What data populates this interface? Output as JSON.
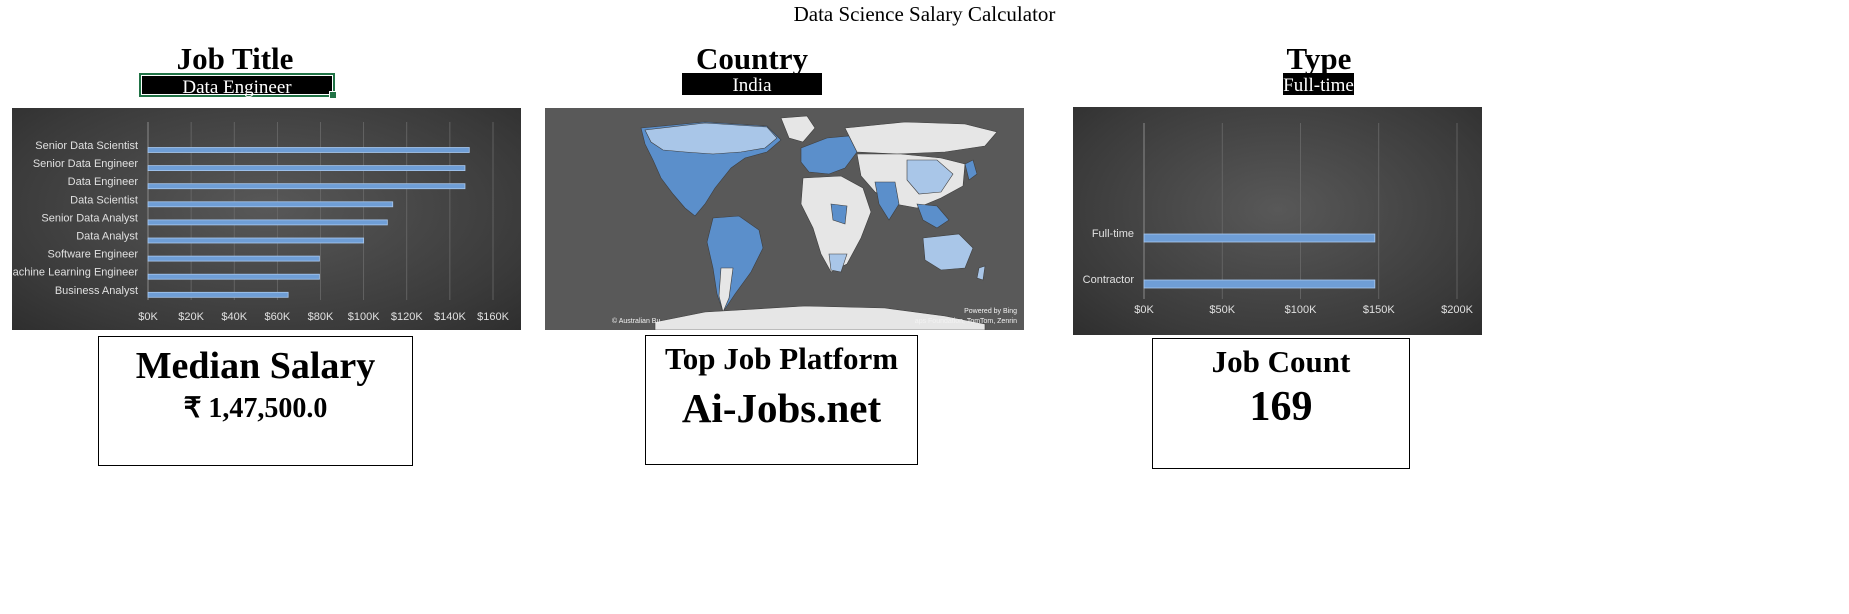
{
  "page": {
    "title": "Data Science Salary Calculator"
  },
  "selectors": {
    "job_title": {
      "label": "Job Title",
      "value": "Data Engineer"
    },
    "country": {
      "label": "Country",
      "value": "India"
    },
    "type": {
      "label": "Type",
      "value": "Full-time"
    }
  },
  "colors": {
    "bar": "#6f9ed6",
    "bar_highlight": "#a9c8ee",
    "panel_dark": "#3a3a3a",
    "map_bg": "#595959",
    "map_land": "#e6e6e6",
    "map_data_dark": "#5b8fcb",
    "map_data_light": "#a9c6e8",
    "selection_green": "#217346"
  },
  "chart_data": [
    {
      "type": "bar",
      "orientation": "horizontal",
      "categories": [
        "Senior Data Scientist",
        "Senior Data Engineer",
        "Data Engineer",
        "Data Scientist",
        "Senior Data Analyst",
        "Data Analyst",
        "Software Engineer",
        "Machine Learning Engineer",
        "Business Analyst"
      ],
      "values": [
        149000,
        147000,
        147000,
        113500,
        111000,
        100000,
        79500,
        79500,
        65000
      ],
      "xlim": [
        0,
        160000
      ],
      "xticks": [
        "$0K",
        "$20K",
        "$40K",
        "$60K",
        "$80K",
        "$100K",
        "$120K",
        "$140K",
        "$160K"
      ],
      "grid": true
    },
    {
      "type": "bar",
      "orientation": "horizontal",
      "categories": [
        "Full-time",
        "Contractor"
      ],
      "values": [
        147500,
        147500
      ],
      "xlim": [
        0,
        200000
      ],
      "xticks": [
        "$0K",
        "$50K",
        "$100K",
        "$150K",
        "$200K"
      ],
      "grid": true
    }
  ],
  "map": {
    "powered_by": "Powered by Bing",
    "credit_left": "© Australian Bu",
    "credit_right": "aps Foundation, TomTom, Zenrin"
  },
  "cards": {
    "median_salary": {
      "title": "Median Salary",
      "value": "₹ 1,47,500.0"
    },
    "top_platform": {
      "title": "Top Job Platform",
      "value": "Ai-Jobs.net"
    },
    "job_count": {
      "title": "Job Count",
      "value": "169"
    }
  }
}
